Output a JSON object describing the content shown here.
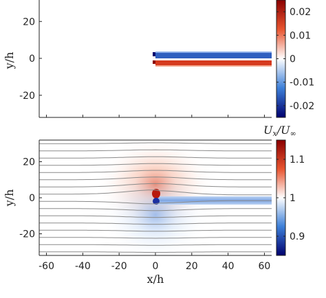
{
  "chart_data": [
    {
      "type": "heatmap",
      "quantity": "u_y",
      "ylabel": "y/h",
      "xlim": [
        -64,
        64
      ],
      "ylim": [
        -32,
        32
      ],
      "yticks": [
        20,
        0,
        -20
      ],
      "colorbar": {
        "label": "",
        "range": [
          -0.025,
          0.025
        ],
        "ticks": [
          0.02,
          0.01,
          0,
          -0.01,
          -0.02
        ],
        "tick_labels": [
          "0.02",
          "0.01",
          "0",
          "-0.01",
          "-0.02"
        ],
        "colormap": [
          "#00006e",
          "#3d7fd8",
          "#ffffff",
          "#e8542f",
          "#8a0000"
        ]
      },
      "features": {
        "plate_start_x": 0,
        "upper_band_y": 1.5,
        "lower_band_y": -1.5,
        "band_value_upper": -0.02,
        "band_value_lower": 0.02
      }
    },
    {
      "type": "heatmap",
      "quantity": "Ux/Uinf",
      "xlabel": "x/h",
      "ylabel": "y/h",
      "xlim": [
        -64,
        64
      ],
      "ylim": [
        -32,
        32
      ],
      "xticks": [
        -60,
        -40,
        -20,
        0,
        20,
        40,
        60
      ],
      "yticks": [
        20,
        0,
        -20
      ],
      "colorbar": {
        "label": "U_x/U_∞",
        "range": [
          0.85,
          1.15
        ],
        "ticks": [
          1.1,
          1,
          0.9
        ],
        "tick_labels": [
          "1.1",
          "1",
          "0.9"
        ],
        "colormap": [
          "#00006e",
          "#3d7fd8",
          "#ffffff",
          "#e8542f",
          "#8a0000"
        ]
      },
      "streamlines_y": [
        -30,
        -26,
        -22,
        -18,
        -14,
        -10,
        -6,
        -2,
        2,
        6,
        10,
        14,
        18,
        22,
        26,
        30
      ],
      "features": {
        "stagnation_high_x": 0,
        "stagnation_high_y": 2,
        "stagnation_low_x": 0,
        "stagnation_low_y": -2,
        "wake_value": 0.93
      }
    }
  ]
}
